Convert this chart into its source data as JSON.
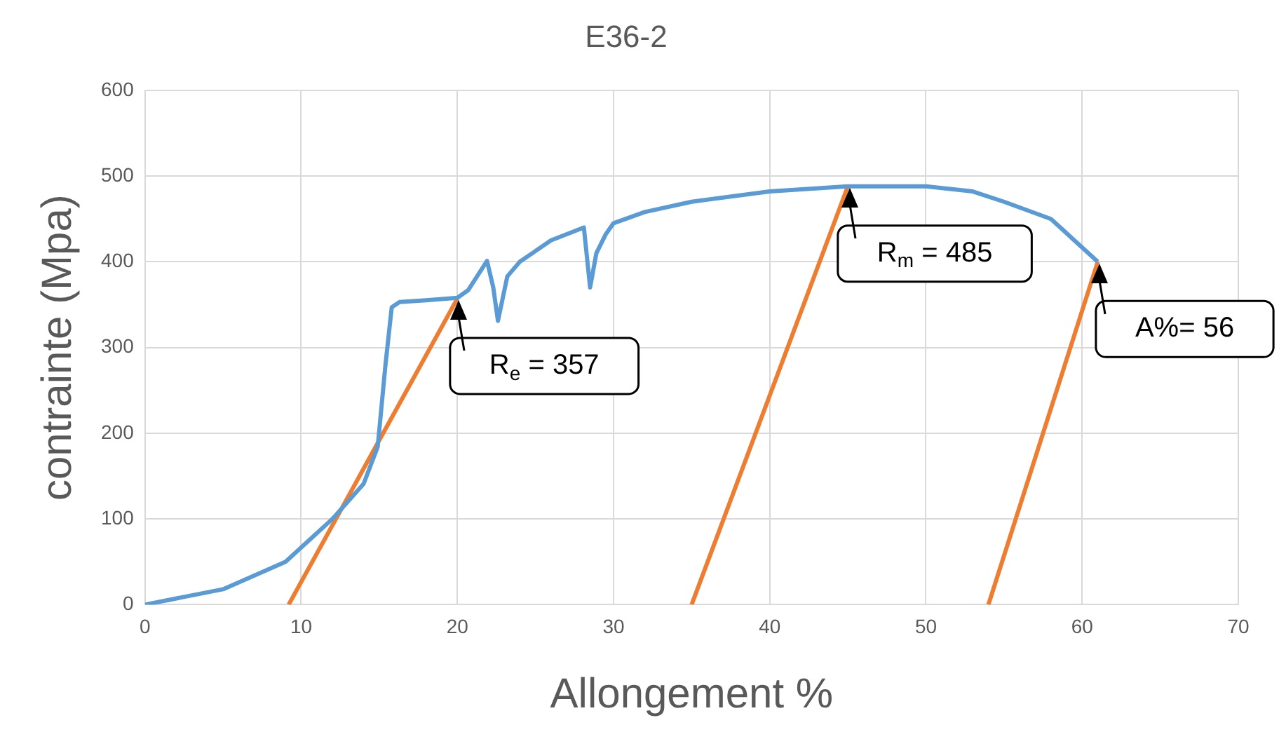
{
  "chart_data": {
    "type": "line",
    "title": "E36-2",
    "xlabel": "Allongement %",
    "ylabel": "contrainte (Mpa)",
    "xlim": [
      0,
      70
    ],
    "xticks": [
      0,
      10,
      20,
      30,
      40,
      50,
      60,
      70
    ],
    "ylim": [
      0,
      600
    ],
    "yticks": [
      0,
      100,
      200,
      300,
      400,
      500,
      600
    ],
    "grid": true,
    "legend": false,
    "marker": "none",
    "line_style": "solid",
    "series": [
      {
        "color": "#5b9bd5",
        "x": [
          0,
          5,
          9,
          12,
          14,
          14.9,
          15.4,
          15.8,
          16.3,
          18,
          20,
          20.7,
          21.9,
          22.3,
          22.6,
          23.2,
          24,
          26,
          28.1,
          28.5,
          28.9,
          29.5,
          30,
          32,
          35,
          40,
          45,
          50,
          53,
          55,
          58,
          61
        ],
        "values": [
          0,
          18,
          50,
          100,
          141,
          184,
          280,
          347,
          353,
          355,
          358,
          367,
          401,
          370,
          331,
          383,
          400,
          425,
          440,
          370,
          410,
          432,
          445,
          458,
          470,
          482,
          488,
          488,
          482,
          470,
          450,
          400
        ]
      },
      {
        "color": "#ed7d31",
        "x": [
          9.2,
          20
        ],
        "values": [
          0,
          357
        ]
      },
      {
        "color": "#ed7d31",
        "x": [
          35,
          45
        ],
        "values": [
          0,
          488
        ]
      },
      {
        "color": "#ed7d31",
        "x": [
          54,
          61
        ],
        "values": [
          0,
          400
        ]
      }
    ],
    "annotations": [
      {
        "text": "R$_{e}$ = 357",
        "x": 20,
        "y": 357
      },
      {
        "text": "R$_{m}$ = 485",
        "x": 45,
        "y": 488
      },
      {
        "text": "A%= 56",
        "x": 61,
        "y": 400
      }
    ]
  }
}
